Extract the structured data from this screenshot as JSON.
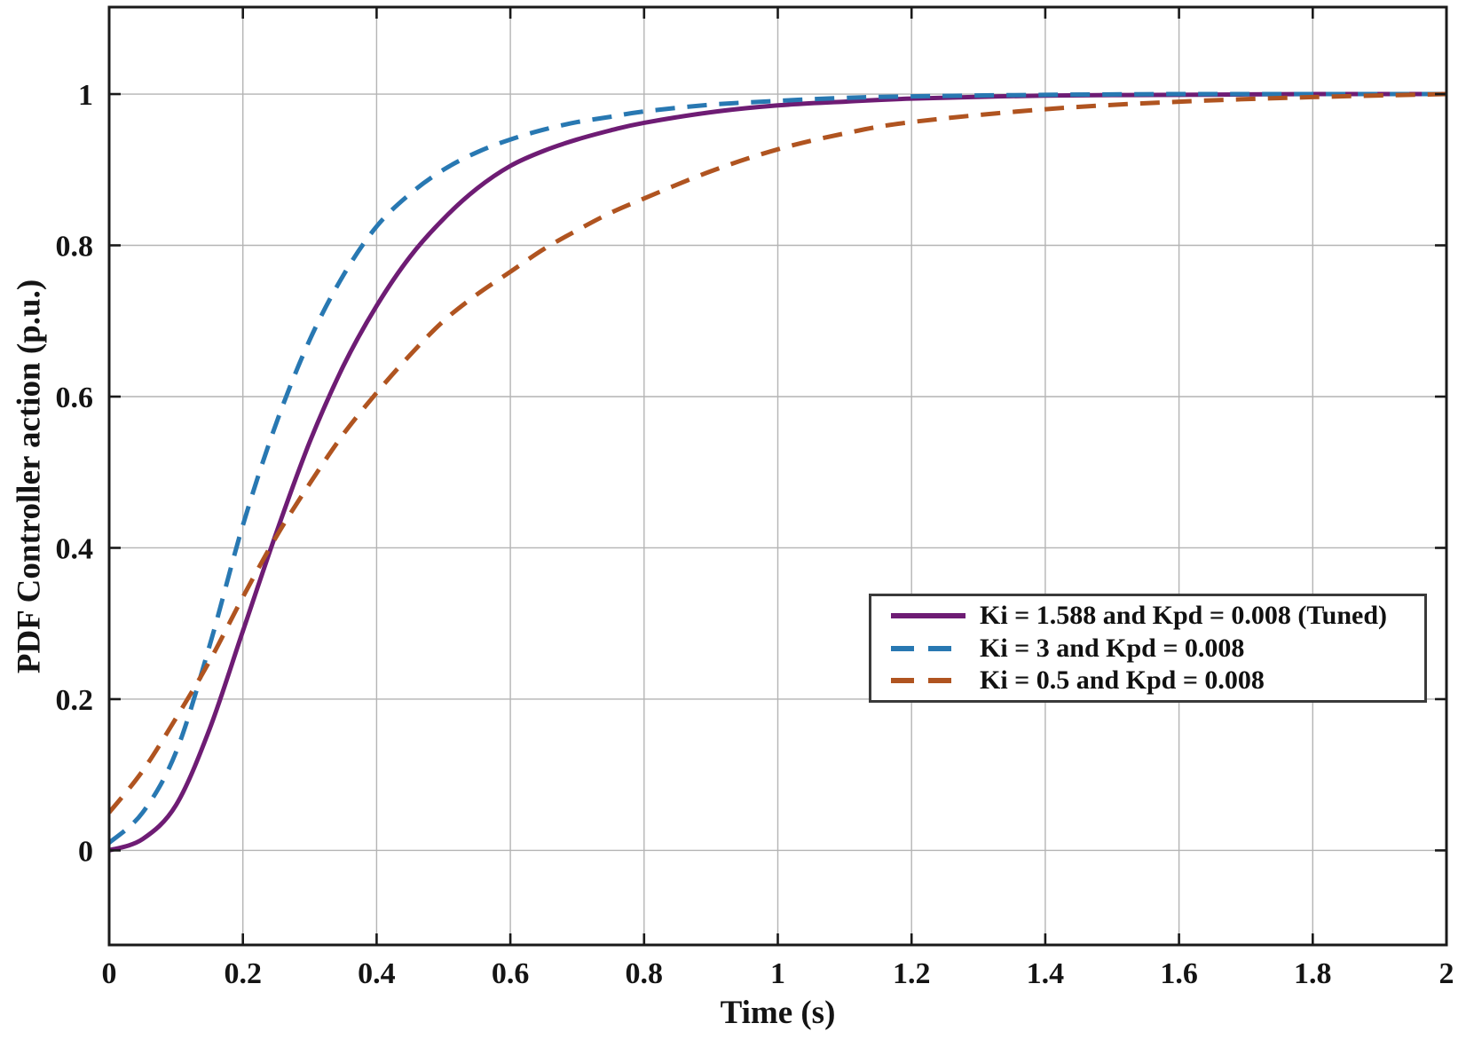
{
  "figure": {
    "background": "#ffffff"
  },
  "chart_data": {
    "type": "line",
    "title": "",
    "xlabel": "Time (s)",
    "ylabel": "PDF Controller action (p.u.)",
    "xlim": [
      0,
      2
    ],
    "ylim": [
      -0.125,
      1.115
    ],
    "xticks": [
      0,
      0.2,
      0.4,
      0.6,
      0.8,
      1,
      1.2,
      1.4,
      1.6,
      1.8,
      2
    ],
    "xtick_labels": [
      "0",
      "0.2",
      "0.4",
      "0.6",
      "0.8",
      "1",
      "1.2",
      "1.4",
      "1.6",
      "1.8",
      "2"
    ],
    "yticks": [
      0,
      0.2,
      0.4,
      0.6,
      0.8,
      1
    ],
    "ytick_labels": [
      "0",
      "0.2",
      "0.4",
      "0.6",
      "0.8",
      "1"
    ],
    "grid": true,
    "grid_color": "#b4b4b4",
    "axis_color": "#1a1a1a",
    "tick_label_color": "#141414",
    "legend": {
      "position": "inside-lower-right",
      "border_color": "#3a3a3a",
      "background": "#ffffff"
    },
    "x": [
      0,
      0.05,
      0.1,
      0.15,
      0.2,
      0.25,
      0.3,
      0.35,
      0.4,
      0.45,
      0.5,
      0.55,
      0.6,
      0.65,
      0.7,
      0.75,
      0.8,
      0.9,
      1,
      1.1,
      1.2,
      1.4,
      1.6,
      1.8,
      2
    ],
    "series": [
      {
        "name": "Ki = 1.588 and Kpd = 0.008 (Tuned)",
        "color": "#6E1C74",
        "line_style": "solid",
        "line_width": 5,
        "y": [
          0,
          0.015,
          0.06,
          0.16,
          0.29,
          0.42,
          0.54,
          0.64,
          0.72,
          0.785,
          0.835,
          0.875,
          0.905,
          0.925,
          0.94,
          0.952,
          0.962,
          0.976,
          0.985,
          0.99,
          0.994,
          0.998,
          0.999,
          1,
          1
        ]
      },
      {
        "name": "Ki = 3 and Kpd = 0.008",
        "color": "#2878B2",
        "line_style": "dashed",
        "line_width": 5,
        "y": [
          0.01,
          0.05,
          0.13,
          0.27,
          0.43,
          0.565,
          0.675,
          0.76,
          0.825,
          0.868,
          0.9,
          0.923,
          0.94,
          0.953,
          0.963,
          0.97,
          0.977,
          0.986,
          0.991,
          0.995,
          0.997,
          0.999,
          1,
          1,
          1
        ]
      },
      {
        "name": "Ki = 0.5 and Kpd = 0.008",
        "color": "#B05420",
        "line_style": "dashed",
        "line_width": 5,
        "y": [
          0.05,
          0.105,
          0.175,
          0.25,
          0.335,
          0.415,
          0.485,
          0.55,
          0.605,
          0.655,
          0.7,
          0.735,
          0.765,
          0.795,
          0.82,
          0.843,
          0.862,
          0.898,
          0.927,
          0.948,
          0.963,
          0.98,
          0.99,
          0.996,
          1
        ]
      }
    ]
  }
}
